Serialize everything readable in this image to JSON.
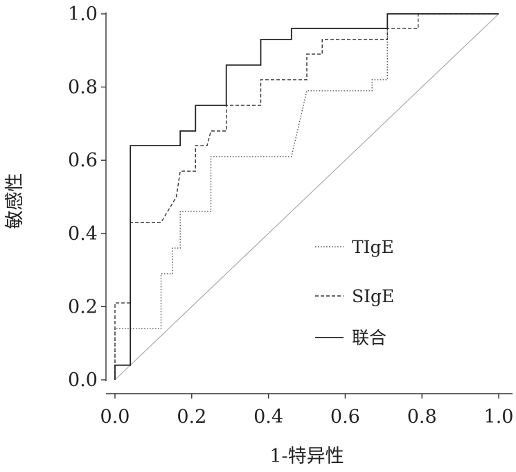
{
  "chart_data": {
    "type": "line",
    "title": "",
    "xlabel": "1-特异性",
    "ylabel": "敏感性",
    "xlim": [
      0,
      1
    ],
    "ylim": [
      0,
      1
    ],
    "xticks": [
      "0.0",
      "0.2",
      "0.4",
      "0.6",
      "0.8",
      "1.0"
    ],
    "yticks": [
      "0.0",
      "0.2",
      "0.4",
      "0.6",
      "0.8",
      "1.0"
    ],
    "grid": false,
    "legend_position": "lower-right",
    "reference_line": {
      "x": [
        0,
        1
      ],
      "y": [
        0,
        1
      ],
      "color": "#aaaaaa"
    },
    "series": [
      {
        "name": "TIgE",
        "style": "dotted",
        "color": "#555555",
        "x": [
          0,
          0,
          0.12,
          0.12,
          0.15,
          0.15,
          0.17,
          0.17,
          0.25,
          0.25,
          0.46,
          0.5,
          0.67,
          0.67,
          0.71,
          0.71,
          1
        ],
        "y": [
          0,
          0.14,
          0.14,
          0.29,
          0.29,
          0.36,
          0.36,
          0.46,
          0.46,
          0.61,
          0.61,
          0.79,
          0.79,
          0.82,
          0.82,
          1,
          1
        ]
      },
      {
        "name": "SIgE",
        "style": "dashed",
        "color": "#333333",
        "x": [
          0,
          0,
          0.04,
          0.04,
          0.12,
          0.16,
          0.17,
          0.21,
          0.21,
          0.24,
          0.25,
          0.29,
          0.29,
          0.38,
          0.38,
          0.5,
          0.5,
          0.54,
          0.54,
          0.71,
          0.71,
          0.79,
          0.79,
          1
        ],
        "y": [
          0,
          0.21,
          0.21,
          0.43,
          0.43,
          0.5,
          0.57,
          0.57,
          0.64,
          0.64,
          0.68,
          0.68,
          0.75,
          0.75,
          0.82,
          0.82,
          0.89,
          0.89,
          0.93,
          0.93,
          0.96,
          0.96,
          1,
          1
        ]
      },
      {
        "name": "联合",
        "style": "solid",
        "color": "#222222",
        "x": [
          0,
          0,
          0.04,
          0.04,
          0.17,
          0.17,
          0.21,
          0.21,
          0.29,
          0.29,
          0.38,
          0.38,
          0.46,
          0.46,
          0.71,
          0.71,
          1
        ],
        "y": [
          0,
          0.04,
          0.04,
          0.64,
          0.64,
          0.68,
          0.68,
          0.75,
          0.75,
          0.86,
          0.86,
          0.93,
          0.93,
          0.96,
          0.96,
          1,
          1
        ]
      }
    ]
  }
}
